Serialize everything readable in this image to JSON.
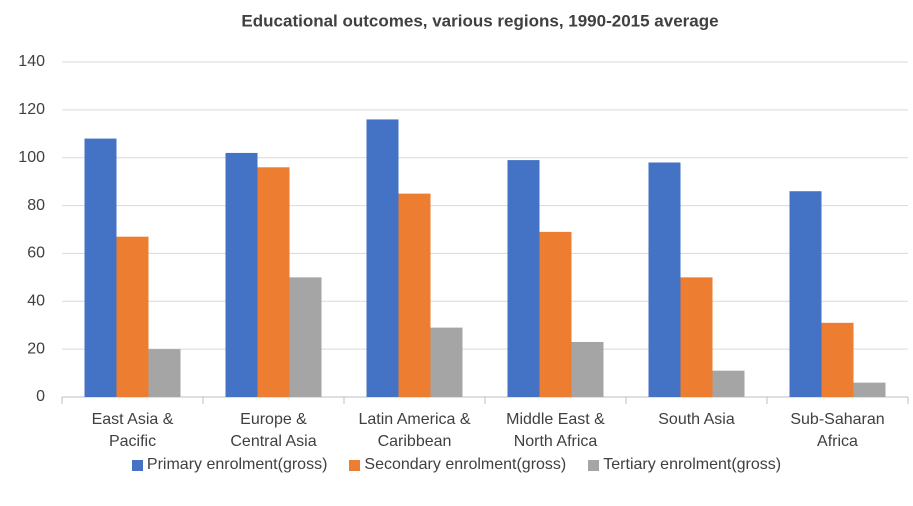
{
  "chart_data": {
    "type": "bar",
    "title": "Educational outcomes, various regions, 1990-2015 average",
    "categories": [
      "East Asia &\nPacific",
      "Europe &\nCentral Asia",
      "Latin America &\nCaribbean",
      "Middle East &\nNorth Africa",
      "South Asia",
      "Sub-Saharan\nAfrica"
    ],
    "series": [
      {
        "name": "Primary enrolment(gross)",
        "color": "#4472c4",
        "values": [
          108,
          102,
          116,
          99,
          98,
          86
        ]
      },
      {
        "name": "Secondary enrolment(gross)",
        "color": "#ed7d31",
        "values": [
          67,
          96,
          85,
          69,
          50,
          31
        ]
      },
      {
        "name": "Tertiary enrolment(gross)",
        "color": "#a5a5a5",
        "values": [
          20,
          50,
          29,
          23,
          11,
          6
        ]
      }
    ],
    "ylim": [
      0,
      140
    ],
    "yticks": [
      0,
      20,
      40,
      60,
      80,
      100,
      120,
      140
    ],
    "grid": true,
    "legend": "bottom"
  }
}
